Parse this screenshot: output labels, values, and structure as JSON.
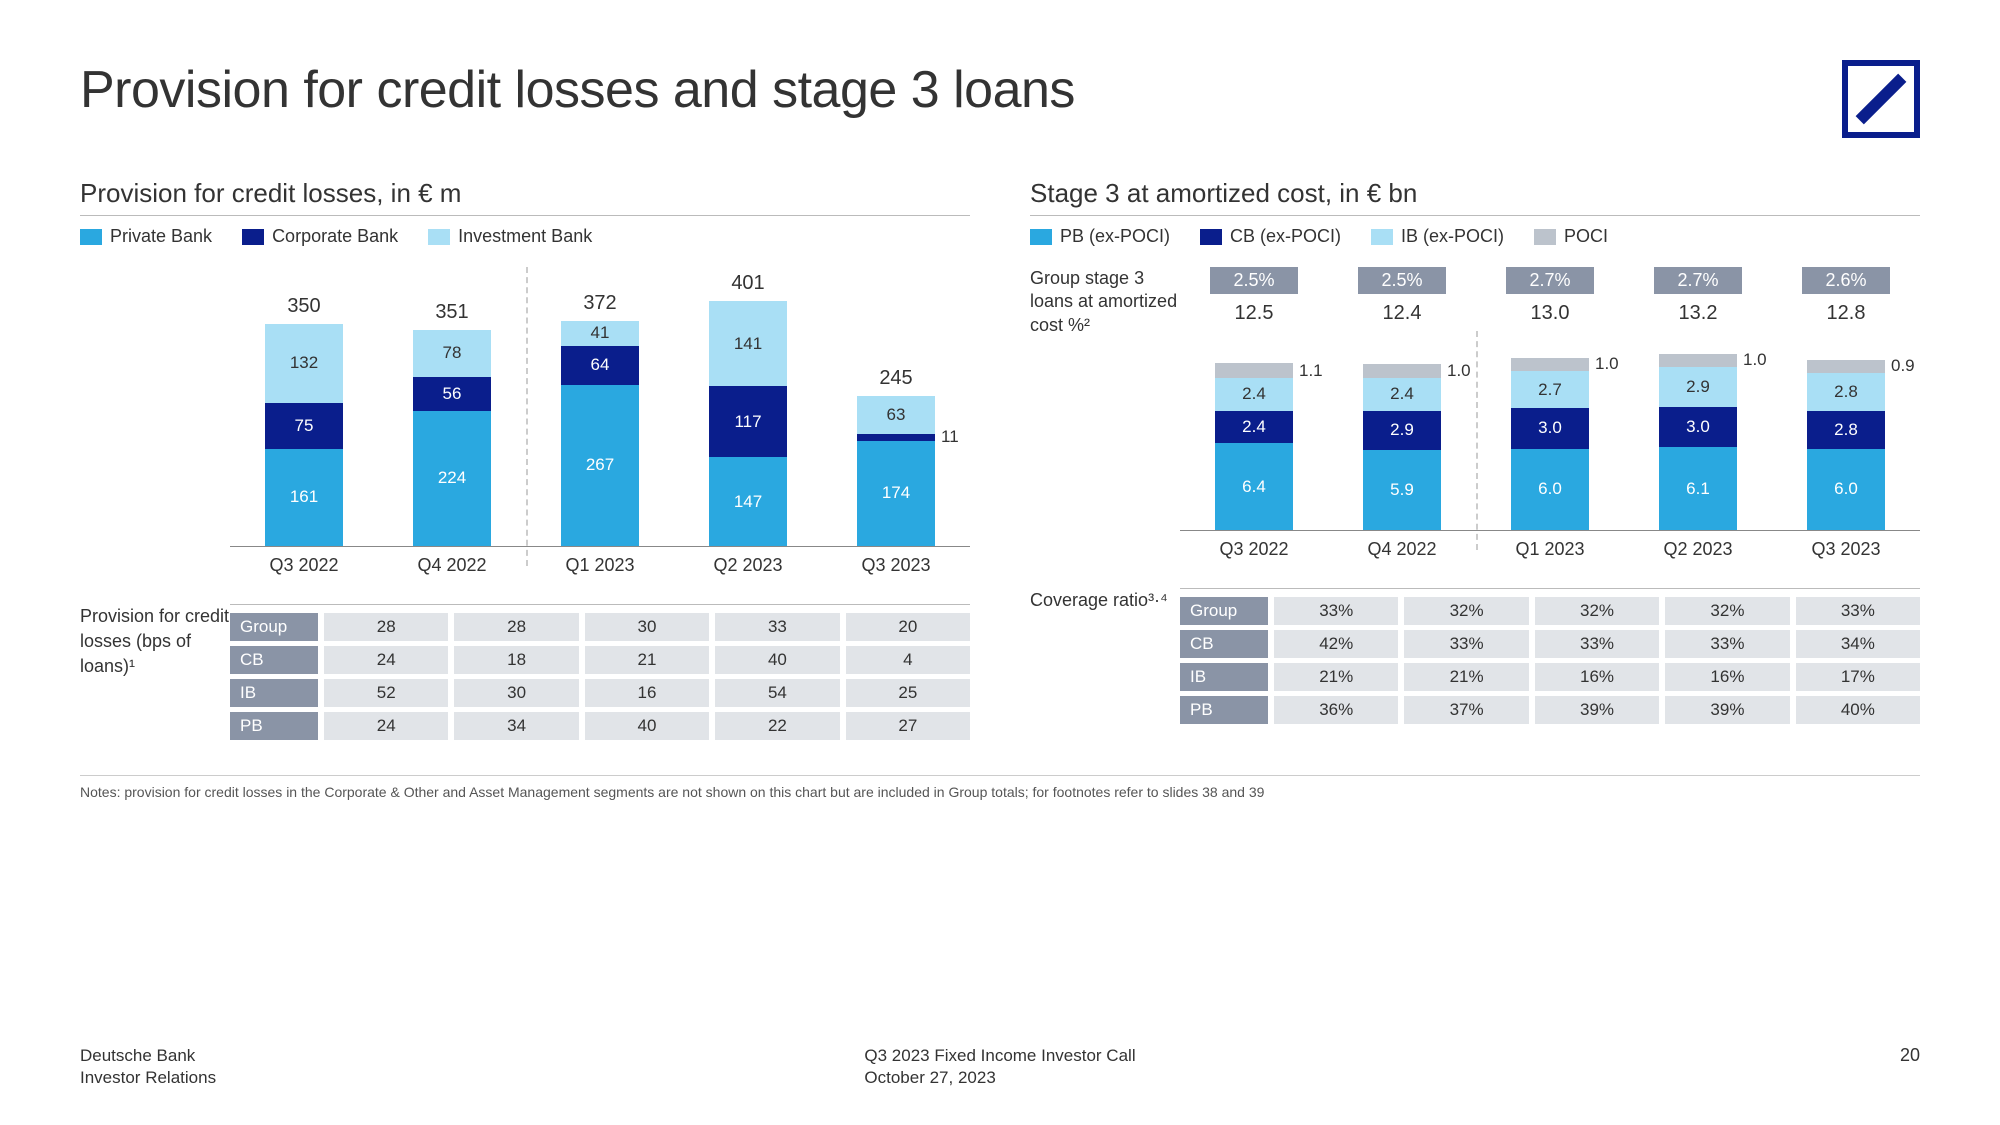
{
  "title": "Provision for credit losses and stage 3 loans",
  "colors": {
    "pb": "#2aa8e0",
    "cb": "#0a1e8c",
    "ib": "#a9dff5",
    "poci": "#bcc3cc",
    "badge_bg": "#8a94a6",
    "cell_bg": "#e1e4e8",
    "text": "#333333"
  },
  "left_panel": {
    "title": "Provision for credit losses, in € m",
    "legend": [
      {
        "label": "Private Bank",
        "color": "#2aa8e0"
      },
      {
        "label": "Corporate Bank",
        "color": "#0a1e8c"
      },
      {
        "label": "Investment Bank",
        "color": "#a9dff5"
      }
    ],
    "chart": {
      "type": "stacked-bar",
      "y_max": 430,
      "periods": [
        "Q3 2022",
        "Q4 2022",
        "Q1 2023",
        "Q2 2023",
        "Q3 2023"
      ],
      "totals": [
        350,
        351,
        372,
        401,
        245
      ],
      "series": [
        {
          "key": "pb",
          "color": "#2aa8e0",
          "text": "#fff",
          "values": [
            161,
            224,
            267,
            147,
            174
          ]
        },
        {
          "key": "cb",
          "color": "#0a1e8c",
          "text": "#fff",
          "values": [
            75,
            56,
            64,
            117,
            11
          ]
        },
        {
          "key": "ib",
          "color": "#a9dff5",
          "text": "#333",
          "values": [
            132,
            78,
            41,
            141,
            63
          ]
        }
      ],
      "vsep_after_index": 1
    },
    "side_label": "Provision for credit losses (bps of loans)¹",
    "table": {
      "rows": [
        {
          "head": "Group",
          "cells": [
            "28",
            "28",
            "30",
            "33",
            "20"
          ]
        },
        {
          "head": "CB",
          "cells": [
            "24",
            "18",
            "21",
            "40",
            "4"
          ]
        },
        {
          "head": "IB",
          "cells": [
            "52",
            "30",
            "16",
            "54",
            "25"
          ]
        },
        {
          "head": "PB",
          "cells": [
            "24",
            "34",
            "40",
            "22",
            "27"
          ]
        }
      ]
    }
  },
  "right_panel": {
    "title": "Stage 3 at amortized cost, in € bn",
    "legend": [
      {
        "label": "PB (ex-POCI)",
        "color": "#2aa8e0"
      },
      {
        "label": "CB (ex-POCI)",
        "color": "#0a1e8c"
      },
      {
        "label": "IB (ex-POCI)",
        "color": "#a9dff5"
      },
      {
        "label": "POCI",
        "color": "#bcc3cc"
      }
    ],
    "badge_label": "Group stage 3 loans at amortized cost %²",
    "badges": [
      "2.5%",
      "2.5%",
      "2.7%",
      "2.7%",
      "2.6%"
    ],
    "chart": {
      "type": "stacked-bar",
      "y_max": 14,
      "periods": [
        "Q3 2022",
        "Q4 2022",
        "Q1 2023",
        "Q2 2023",
        "Q3 2023"
      ],
      "totals": [
        "12.5",
        "12.4",
        "13.0",
        "13.2",
        "12.8"
      ],
      "series": [
        {
          "key": "pb",
          "color": "#2aa8e0",
          "text": "#fff",
          "values": [
            6.4,
            5.9,
            6.0,
            6.1,
            6.0
          ]
        },
        {
          "key": "cb",
          "color": "#0a1e8c",
          "text": "#fff",
          "values": [
            2.4,
            2.9,
            3.0,
            3.0,
            2.8
          ]
        },
        {
          "key": "ib",
          "color": "#a9dff5",
          "text": "#333",
          "values": [
            2.4,
            2.4,
            2.7,
            2.9,
            2.8
          ]
        },
        {
          "key": "poci",
          "color": "#bcc3cc",
          "text": "#333",
          "values": [
            1.1,
            1.0,
            1.0,
            1.0,
            0.9
          ]
        }
      ],
      "vsep_after_index": 1
    },
    "side_label": "Coverage ratio³·⁴",
    "table": {
      "rows": [
        {
          "head": "Group",
          "cells": [
            "33%",
            "32%",
            "32%",
            "32%",
            "33%"
          ]
        },
        {
          "head": "CB",
          "cells": [
            "42%",
            "33%",
            "33%",
            "33%",
            "34%"
          ]
        },
        {
          "head": "IB",
          "cells": [
            "21%",
            "21%",
            "16%",
            "16%",
            "17%"
          ]
        },
        {
          "head": "PB",
          "cells": [
            "36%",
            "37%",
            "39%",
            "39%",
            "40%"
          ]
        }
      ]
    }
  },
  "notes": "Notes: provision for credit losses in the Corporate & Other and Asset Management segments are not shown on this chart but are included in Group totals; for footnotes refer to slides 38 and 39",
  "footer": {
    "left1": "Deutsche Bank",
    "left2": "Investor Relations",
    "center1": "Q3 2023 Fixed Income Investor Call",
    "center2": "October 27, 2023",
    "page": "20"
  }
}
